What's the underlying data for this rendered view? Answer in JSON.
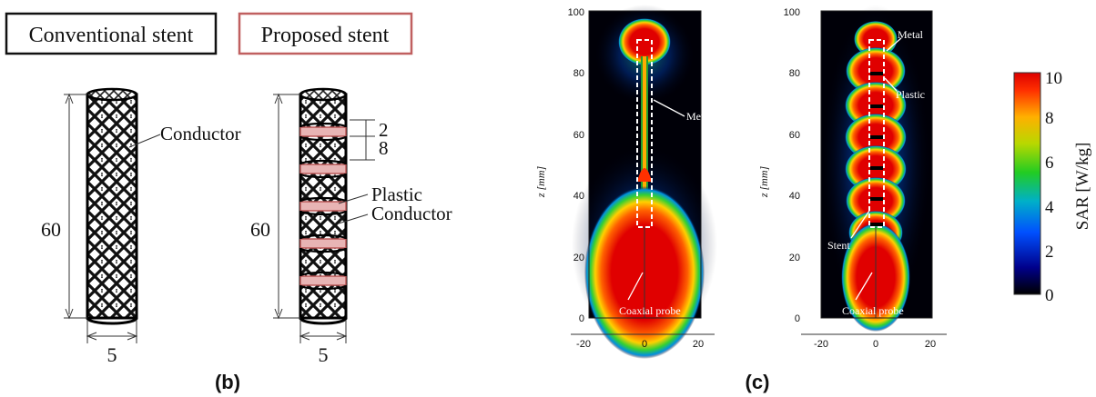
{
  "panel_b": {
    "conventional_label": "Conventional stent",
    "proposed_label": "Proposed stent",
    "conductor_label": "Conductor",
    "plastic_label": "Plastic",
    "conductor_label_2": "Conductor",
    "length_value": "60",
    "length_value_2": "60",
    "diameter_value": "5",
    "diameter_value_2": "5",
    "plastic_width": "2",
    "conductor_width": "8",
    "caption": "(b)"
  },
  "panel_c": {
    "caption": "(c)",
    "ylabel": "z [mm]",
    "colorbar_label": "SAR [W/kg]",
    "colorbar_ticks": [
      "10",
      "8",
      "6",
      "4",
      "2",
      "0"
    ],
    "left_plot": {
      "y_ticks": [
        "100",
        "80",
        "60",
        "40",
        "20",
        "0"
      ],
      "x_ticks": [
        "-20",
        "0",
        "20"
      ],
      "annotations": {
        "stent": "Metal stent",
        "probe": "Coaxial probe"
      }
    },
    "right_plot": {
      "y_ticks": [
        "100",
        "80",
        "60",
        "40",
        "20",
        "0"
      ],
      "x_ticks": [
        "-20",
        "0",
        "20"
      ],
      "annotations": {
        "metal": "Metal",
        "plastic": "Plastic",
        "stent": "Stent",
        "probe": "Coaxial probe"
      }
    }
  },
  "chart_data": {
    "type": "heatmap",
    "title": "",
    "xlabel": "",
    "ylabel": "z [mm]",
    "xlim": [
      -25,
      25
    ],
    "ylim": [
      0,
      100
    ],
    "xticks": [
      -20,
      0,
      20
    ],
    "yticks": [
      0,
      20,
      40,
      60,
      80,
      100
    ],
    "colorbar": {
      "label": "SAR [W/kg]",
      "range": [
        0,
        10
      ],
      "ticks": [
        0,
        2,
        4,
        6,
        8,
        10
      ]
    },
    "colors": {
      "high": "#ff0000",
      "mid_high": "#ffcc00",
      "mid": "#33cc33",
      "mid_low": "#0066ff",
      "low": "#000000"
    }
  }
}
